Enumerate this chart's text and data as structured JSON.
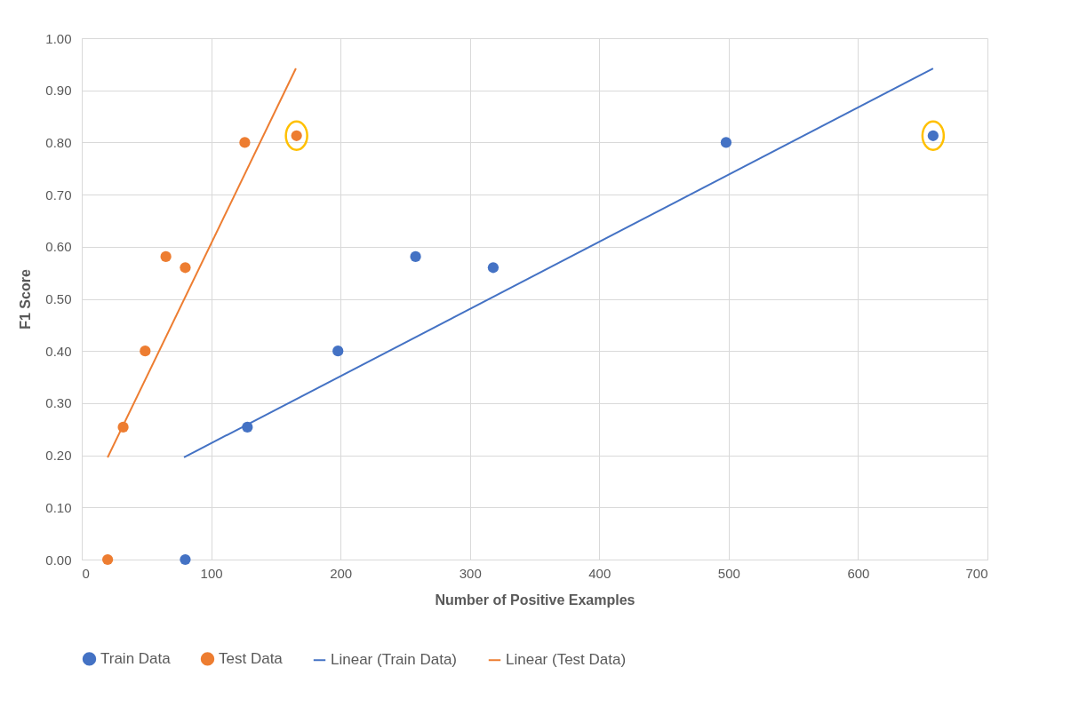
{
  "chart_data": {
    "type": "scatter",
    "xlabel": "Number of Positive Examples",
    "ylabel": "F1 Score",
    "xlim": [
      0,
      700
    ],
    "xticks": [
      0,
      100,
      200,
      300,
      400,
      500,
      600,
      700
    ],
    "ylim": [
      0,
      1
    ],
    "yticks": [
      {
        "value": 0,
        "label": "0.00"
      },
      {
        "value": 0.1,
        "label": "0.10"
      },
      {
        "value": 0.2,
        "label": "0.20"
      },
      {
        "value": 0.3,
        "label": "0.30"
      },
      {
        "value": 0.4,
        "label": "0.40"
      },
      {
        "value": 0.5,
        "label": "0.50"
      },
      {
        "value": 0.6,
        "label": "0.60"
      },
      {
        "value": 0.7,
        "label": "0.70"
      },
      {
        "value": 0.8,
        "label": "0.80"
      },
      {
        "value": 0.9,
        "label": "0.90"
      },
      {
        "value": 1,
        "label": "1.00"
      }
    ],
    "grid": true,
    "legend": "bottom",
    "series": [
      {
        "name": "Train Data",
        "type": "scatter",
        "marker": "circle",
        "color": "#4472c4",
        "x": [
          80,
          128,
          198,
          258,
          318,
          498,
          658
        ],
        "values": [
          0.0,
          0.254,
          0.4,
          0.581,
          0.56,
          0.8,
          0.813
        ]
      },
      {
        "name": "Test Data",
        "type": "scatter",
        "marker": "circle",
        "color": "#ed7d31",
        "x": [
          20,
          32,
          49,
          65,
          80,
          126,
          166
        ],
        "values": [
          0.0,
          0.254,
          0.4,
          0.581,
          0.56,
          0.8,
          0.813
        ]
      },
      {
        "name": "Linear (Train Data)",
        "type": "line",
        "line_style": "solid",
        "color": "#4472c4",
        "x": [
          79,
          658
        ],
        "values": [
          0.196,
          0.942
        ]
      },
      {
        "name": "Linear (Test Data)",
        "type": "line",
        "line_style": "solid",
        "color": "#ed7d31",
        "x": [
          20,
          165.5
        ],
        "values": [
          0.196,
          0.942
        ]
      }
    ]
  }
}
